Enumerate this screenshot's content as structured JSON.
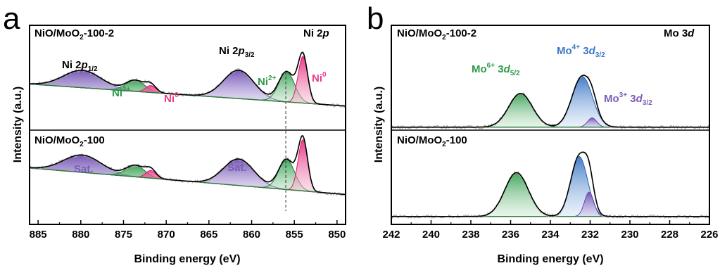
{
  "figure": {
    "panels": [
      {
        "letter": "a",
        "region": "Ni 2",
        "region_sub": "p",
        "top_sample": {
          "main": "NiO/MoO",
          "sub": "2",
          "rest": "-100-2"
        },
        "bottom_sample": {
          "main": "NiO/MoO",
          "sub": "2",
          "rest": "-100"
        },
        "ylabel": "Intensity (a.u.)",
        "xlabel": "Binding energy (eV)",
        "annotations": {
          "p12": {
            "main": "Ni 2",
            "ital": "p",
            "sub": "1/2"
          },
          "p32": {
            "main": "Ni 2",
            "ital": "p",
            "sub": "3/2"
          },
          "ni2_left": {
            "main": "Ni",
            "sup": "2+"
          },
          "ni0_left": {
            "main": "Ni",
            "sup": "0"
          },
          "ni2_right": {
            "main": "Ni",
            "sup": "2+"
          },
          "ni0_right": {
            "main": "Ni",
            "sup": "0"
          },
          "sat_left": "Sat.",
          "sat_right": "Sat."
        }
      },
      {
        "letter": "b",
        "region": "Mo 3",
        "region_sub": "d",
        "top_sample": {
          "main": "NiO/MoO",
          "sub": "2",
          "rest": "-100-2"
        },
        "bottom_sample": {
          "main": "NiO/MoO",
          "sub": "2",
          "rest": "-100"
        },
        "ylabel": "Intensity (a.u.)",
        "xlabel": "Binding energy (eV)",
        "annotations": {
          "mo6": {
            "main": "Mo",
            "sup": "6+",
            "mid": " 3",
            "ital": "d",
            "sub": "5/2"
          },
          "mo4": {
            "main": "Mo",
            "sup": "4+",
            "mid": " 3",
            "ital": "d",
            "sub": "3/2"
          },
          "mo3": {
            "main": "Mo",
            "sup": "3+",
            "mid": " 3",
            "ital": "d",
            "sub": "3/2"
          }
        }
      }
    ]
  },
  "colors": {
    "purple": "#8060b8",
    "green": "#2e9a4a",
    "pink": "#e83a8a",
    "blue": "#3a78c8",
    "envelope": "#000000",
    "raw": "#aaaaaa",
    "baseline": "#2f7d3a"
  },
  "chart_data": [
    {
      "type": "line",
      "panel": "a",
      "xlabel": "Binding energy (eV)",
      "ylabel": "Intensity (a.u.)",
      "xlim": [
        886,
        849
      ],
      "x_reversed": true,
      "xticks": [
        885,
        880,
        875,
        870,
        865,
        860,
        855,
        850
      ],
      "y_ticks_shown": false,
      "reference_line_x": 856.0,
      "samples": [
        {
          "name": "NiO/MoO2-100-2",
          "baseline": [
            1.75,
            0.55
          ],
          "components": [
            {
              "label": "Sat.",
              "center": 879.8,
              "fwhm": 5.2,
              "height": 0.95,
              "color": "purple"
            },
            {
              "label": "Ni2+",
              "center": 873.6,
              "fwhm": 2.6,
              "height": 0.6,
              "color": "green"
            },
            {
              "label": "Ni0",
              "center": 871.8,
              "fwhm": 1.4,
              "height": 0.38,
              "color": "pink"
            },
            {
              "label": "Sat.",
              "center": 861.5,
              "fwhm": 4.2,
              "height": 1.55,
              "color": "purple"
            },
            {
              "label": "Ni2+",
              "center": 855.9,
              "fwhm": 2.2,
              "height": 1.65,
              "color": "green"
            },
            {
              "label": "Ni0",
              "center": 854.0,
              "fwhm": 1.3,
              "height": 2.55,
              "color": "pink"
            }
          ]
        },
        {
          "name": "NiO/MoO2-100",
          "baseline": [
            1.7,
            0.25
          ],
          "components": [
            {
              "label": "Sat.",
              "center": 879.8,
              "fwhm": 5.2,
              "height": 0.95,
              "color": "purple"
            },
            {
              "label": "Ni2+",
              "center": 873.6,
              "fwhm": 2.6,
              "height": 0.62,
              "color": "green"
            },
            {
              "label": "Ni0",
              "center": 871.8,
              "fwhm": 1.4,
              "height": 0.42,
              "color": "pink"
            },
            {
              "label": "Sat.",
              "center": 861.5,
              "fwhm": 4.2,
              "height": 1.45,
              "color": "purple"
            },
            {
              "label": "Ni2+",
              "center": 855.9,
              "fwhm": 2.2,
              "height": 1.65,
              "color": "green"
            },
            {
              "label": "Ni0",
              "center": 854.0,
              "fwhm": 1.3,
              "height": 2.8,
              "color": "pink"
            }
          ]
        }
      ]
    },
    {
      "type": "line",
      "panel": "b",
      "xlabel": "Binding energy (eV)",
      "ylabel": "Intensity (a.u.)",
      "xlim": [
        242,
        226
      ],
      "x_reversed": true,
      "xticks": [
        242,
        240,
        238,
        236,
        234,
        232,
        230,
        228,
        226
      ],
      "y_ticks_shown": false,
      "samples": [
        {
          "name": "NiO/MoO2-100-2",
          "baseline": [
            0.05,
            0.05
          ],
          "components": [
            {
              "label": "Mo6+ 3d5/2",
              "center": 235.5,
              "fwhm": 1.4,
              "height": 2.0,
              "color": "green"
            },
            {
              "label": "Mo4+ 3d3/2",
              "center": 232.4,
              "fwhm": 1.2,
              "height": 3.0,
              "color": "blue"
            },
            {
              "label": "Mo3+ 3d3/2",
              "center": 231.9,
              "fwhm": 0.55,
              "height": 0.55,
              "color": "purple"
            }
          ]
        },
        {
          "name": "NiO/MoO2-100",
          "baseline": [
            0.05,
            0.05
          ],
          "components": [
            {
              "label": "Mo6+ 3d5/2",
              "center": 235.7,
              "fwhm": 1.4,
              "height": 2.6,
              "color": "green"
            },
            {
              "label": "Mo4+ 3d3/2",
              "center": 232.55,
              "fwhm": 1.0,
              "height": 3.55,
              "color": "blue"
            },
            {
              "label": "Mo3+ 3d3/2",
              "center": 232.05,
              "fwhm": 0.55,
              "height": 1.45,
              "color": "purple"
            }
          ]
        }
      ]
    }
  ]
}
